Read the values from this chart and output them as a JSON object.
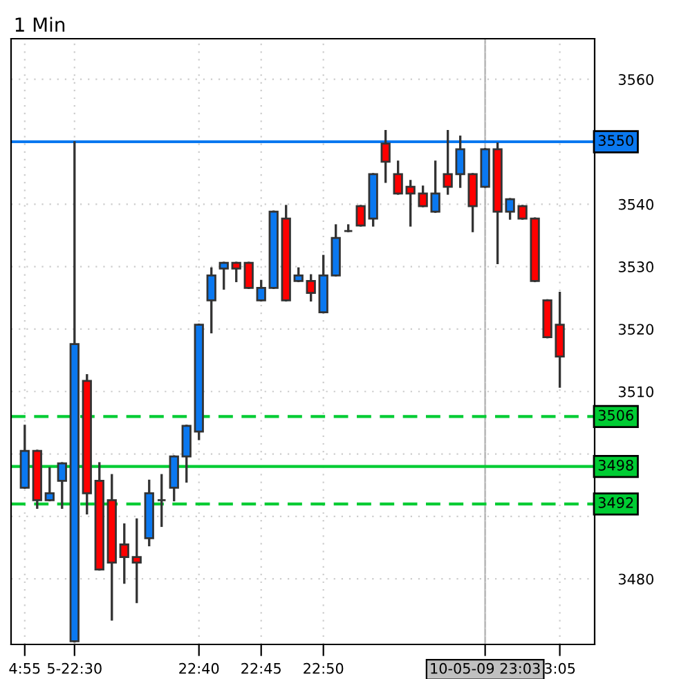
{
  "chart_data": {
    "type": "candlestick",
    "title": "1 Min",
    "categories": [
      "4:55",
      null,
      null,
      null,
      "5-22:30",
      null,
      null,
      null,
      null,
      null,
      null,
      null,
      null,
      null,
      "22:40",
      null,
      null,
      null,
      null,
      "22:45",
      null,
      null,
      null,
      null,
      "22:50",
      null,
      null,
      null,
      null,
      null,
      null,
      null,
      null,
      null,
      null,
      null,
      null,
      "10-05-09 23:03",
      null,
      null,
      null,
      null,
      null,
      "3:05"
    ],
    "ohlc": [
      [
        3494.6,
        3504.5,
        3494.6,
        3500.5
      ],
      [
        3500.5,
        3500.5,
        3491.4,
        3492.6
      ],
      [
        3492.6,
        3497.7,
        3492.6,
        3493.7
      ],
      [
        3495.7,
        3498.5,
        3491.4,
        3498.5
      ],
      [
        3470.0,
        3549.9,
        3470.0,
        3517.6
      ],
      [
        3511.7,
        3512.6,
        3490.5,
        3493.7
      ],
      [
        3495.7,
        3498.5,
        3481.5,
        3481.5
      ],
      [
        3492.6,
        3496.6,
        3473.5,
        3482.6
      ],
      [
        3485.5,
        3488.7,
        3479.4,
        3483.5
      ],
      [
        3483.5,
        3489.5,
        3476.3,
        3482.6
      ],
      [
        3486.5,
        3495.7,
        3485.4,
        3493.7
      ],
      [
        3492.6,
        3496.6,
        3488.5,
        3492.6
      ],
      [
        3494.6,
        3499.6,
        3492.6,
        3499.6
      ],
      [
        3499.6,
        3504.5,
        3495.6,
        3504.5
      ],
      [
        3503.6,
        3520.7,
        3502.4,
        3520.7
      ],
      [
        3524.6,
        3529.7,
        3519.5,
        3528.6
      ],
      [
        3529.7,
        3530.6,
        3526.5,
        3530.6
      ],
      [
        3530.6,
        3530.6,
        3527.7,
        3529.7
      ],
      [
        3530.6,
        3530.6,
        3526.6,
        3526.6
      ],
      [
        3524.6,
        3527.7,
        3524.6,
        3526.6
      ],
      [
        3526.6,
        3538.8,
        3526.6,
        3538.8
      ],
      [
        3537.7,
        3539.7,
        3524.6,
        3524.6
      ],
      [
        3527.7,
        3529.7,
        3527.7,
        3528.6
      ],
      [
        3527.7,
        3528.6,
        3524.6,
        3525.8
      ],
      [
        3522.7,
        3531.7,
        3522.7,
        3528.6
      ],
      [
        3528.6,
        3536.6,
        3528.6,
        3534.6
      ],
      [
        3535.7,
        3536.6,
        3535.7,
        3535.7
      ],
      [
        3539.7,
        3539.7,
        3536.6,
        3536.6
      ],
      [
        3537.7,
        3544.8,
        3536.6,
        3544.8
      ],
      [
        3549.7,
        3551.7,
        3543.6,
        3546.8
      ],
      [
        3544.8,
        3546.8,
        3541.7,
        3541.7
      ],
      [
        3542.8,
        3543.7,
        3536.6,
        3541.7
      ],
      [
        3541.7,
        3542.8,
        3539.7,
        3539.7
      ],
      [
        3538.8,
        3546.8,
        3538.8,
        3541.7
      ],
      [
        3544.8,
        3551.7,
        3541.7,
        3542.8
      ],
      [
        3544.8,
        3550.8,
        3542.8,
        3548.8
      ],
      [
        3544.8,
        3544.8,
        3535.7,
        3539.7
      ],
      [
        3542.8,
        3548.8,
        3542.8,
        3548.8
      ],
      [
        3548.8,
        3549.7,
        3530.6,
        3538.8
      ],
      [
        3538.8,
        3540.8,
        3537.7,
        3540.8
      ],
      [
        3539.7,
        3539.7,
        3537.7,
        3537.7
      ],
      [
        3537.7,
        3537.7,
        3527.7,
        3527.7
      ],
      [
        3524.6,
        3524.6,
        3518.7,
        3518.7
      ],
      [
        3520.7,
        3525.8,
        3510.8,
        3515.6
      ]
    ],
    "colors": [
      "#0a78f0",
      "#ff0000",
      "#0a78f0",
      "#0a78f0",
      "#0a78f0",
      "#ff0000",
      "#ff0000",
      "#ff0000",
      "#ff0000",
      "#ff0000",
      "#0a78f0",
      "#333333",
      "#0a78f0",
      "#0a78f0",
      "#0a78f0",
      "#0a78f0",
      "#0a78f0",
      "#ff0000",
      "#ff0000",
      "#0a78f0",
      "#0a78f0",
      "#ff0000",
      "#0a78f0",
      "#ff0000",
      "#0a78f0",
      "#0a78f0",
      "#333333",
      "#ff0000",
      "#0a78f0",
      "#ff0000",
      "#ff0000",
      "#ff0000",
      "#ff0000",
      "#0a78f0",
      "#ff0000",
      "#0a78f0",
      "#ff0000",
      "#0a78f0",
      "#ff0000",
      "#0a78f0",
      "#ff0000",
      "#ff0000",
      "#ff0000",
      "#ff0000"
    ],
    "ylim": [
      3469.5,
      3566.5
    ],
    "yticks": [
      3480,
      {
        "value": 3490,
        "label": null
      },
      {
        "value": 3500,
        "label": null
      },
      3510,
      3520,
      3530,
      3540,
      3560
    ],
    "grid": true,
    "ref_lines": [
      {
        "axis": "y",
        "value": 3550,
        "label": "3550",
        "color": "#0a78f0",
        "line_style": "solid"
      },
      {
        "axis": "y",
        "value": 3506,
        "label": "3506",
        "color": "#00cc33",
        "line_style": "dashed"
      },
      {
        "axis": "y",
        "value": 3498,
        "label": "3498",
        "color": "#00cc33",
        "line_style": "solid"
      },
      {
        "axis": "y",
        "value": 3492,
        "label": "3492",
        "color": "#00cc33",
        "line_style": "dashed"
      },
      {
        "axis": "x",
        "value": "10-05-09 23:03",
        "color": "#bbbbbb",
        "line_style": "solid"
      }
    ]
  }
}
